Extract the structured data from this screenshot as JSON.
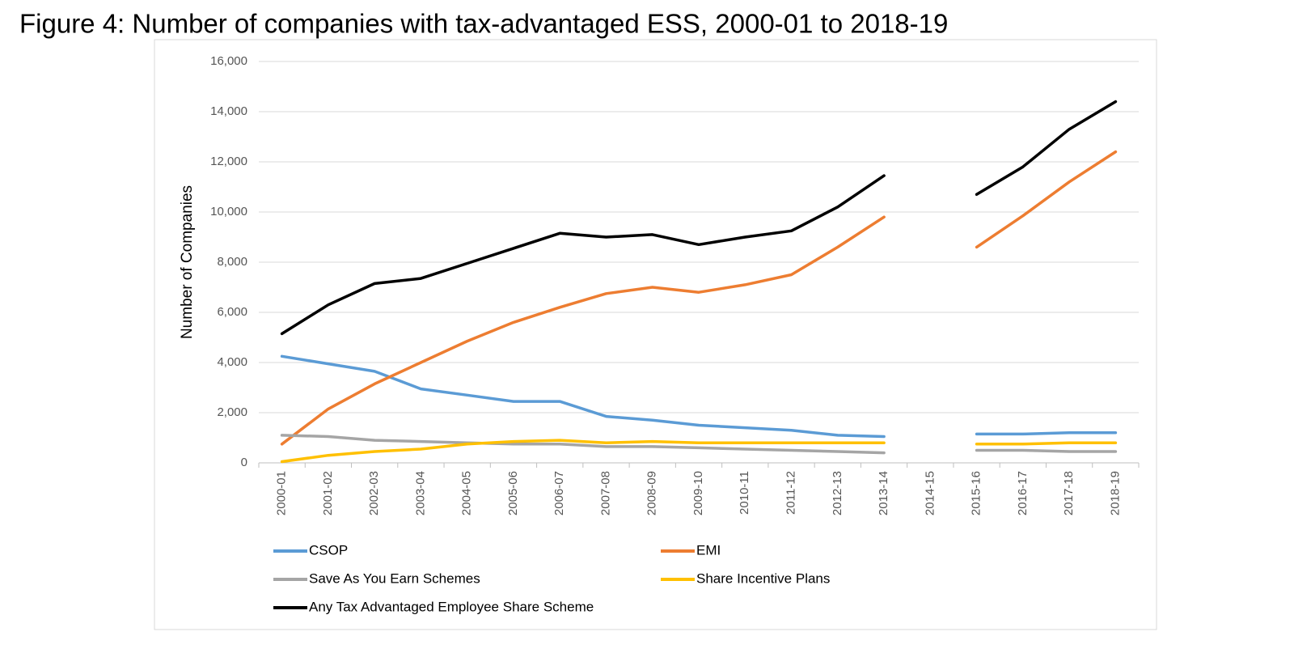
{
  "chart_data": {
    "type": "line",
    "title": "Figure 4: Number of companies with tax-advantaged ESS, 2000-01 to 2018-19",
    "y_label": "Number of Companies",
    "categories": [
      "2000-01",
      "2001-02",
      "2002-03",
      "2003-04",
      "2004-05",
      "2005-06",
      "2006-07",
      "2007-08",
      "2008-09",
      "2009-10",
      "2010-11",
      "2011-12",
      "2012-13",
      "2013-14",
      "2014-15",
      "2015-16",
      "2016-17",
      "2017-18",
      "2018-19"
    ],
    "ylim": [
      0,
      16000
    ],
    "yticks": [
      0,
      {
        "value": 2000,
        "label": "2,000"
      },
      {
        "value": 4000,
        "label": "4,000"
      },
      {
        "value": 6000,
        "label": "6,000"
      },
      {
        "value": 8000,
        "label": "8,000"
      },
      {
        "value": 10000,
        "label": "10,000"
      },
      {
        "value": 12000,
        "label": "12,000"
      },
      {
        "value": 14000,
        "label": "14,000"
      },
      {
        "value": 16000,
        "label": "16,000"
      }
    ],
    "grid": true,
    "series": [
      {
        "name": "CSOP",
        "color": "#5b9bd5",
        "values": [
          4250,
          3950,
          3650,
          2950,
          2700,
          2450,
          2450,
          1850,
          1700,
          1500,
          1400,
          1300,
          1100,
          1050,
          null,
          1150,
          1150,
          1200,
          1200
        ]
      },
      {
        "name": "EMI",
        "color": "#ed7d31",
        "values": [
          750,
          2150,
          3150,
          4000,
          4850,
          5600,
          6200,
          6750,
          7000,
          6800,
          7100,
          7500,
          8600,
          9800,
          null,
          8600,
          9850,
          11200,
          12400
        ]
      },
      {
        "name": "Save As You Earn Schemes",
        "color": "#a5a5a5",
        "values": [
          1100,
          1050,
          900,
          850,
          800,
          750,
          750,
          650,
          650,
          600,
          550,
          500,
          450,
          400,
          null,
          500,
          500,
          450,
          450
        ]
      },
      {
        "name": "Share Incentive Plans",
        "color": "#ffc000",
        "values": [
          50,
          300,
          450,
          550,
          750,
          850,
          900,
          800,
          850,
          800,
          800,
          800,
          800,
          800,
          null,
          750,
          750,
          800,
          800
        ]
      },
      {
        "name": "Any Tax Advantaged Employee Share Scheme",
        "color": "#000000",
        "values": [
          5150,
          6300,
          7150,
          7350,
          7950,
          8550,
          9150,
          9000,
          9100,
          8700,
          9000,
          9250,
          10200,
          11450,
          null,
          10700,
          11800,
          13300,
          14400
        ]
      }
    ]
  }
}
